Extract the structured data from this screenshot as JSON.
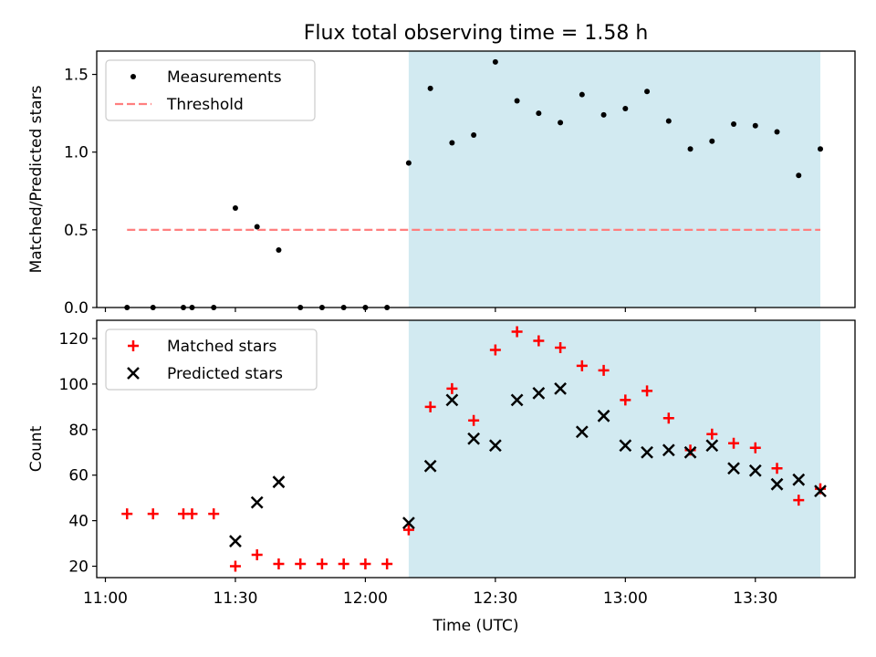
{
  "title": "Flux total observing time = 1.58 h",
  "colors": {
    "shade": "#add8e6",
    "threshold": "#ff7f7f",
    "matched": "#ff0000",
    "predicted": "#000000",
    "measurement": "#000000"
  },
  "chart_data": [
    {
      "type": "scatter",
      "ylabel": "Matched/Predicted stars",
      "xlim": [
        "10:58",
        "13:53"
      ],
      "ylim": [
        0,
        1.65
      ],
      "yticks": [
        "0.0",
        "0.5",
        "1.0",
        "1.5"
      ],
      "shaded_region": [
        "12:10",
        "13:45"
      ],
      "legend": {
        "position": "upper-left",
        "entries": [
          "Measurements",
          "Threshold"
        ]
      },
      "threshold": {
        "name": "Threshold",
        "y": 0.5,
        "x": [
          "11:05",
          "13:45"
        ]
      },
      "series": [
        {
          "name": "Measurements",
          "marker": "dot",
          "points": [
            [
              "11:05",
              0.0
            ],
            [
              "11:11",
              0.0
            ],
            [
              "11:18",
              0.0
            ],
            [
              "11:20",
              0.0
            ],
            [
              "11:25",
              0.0
            ],
            [
              "11:30",
              0.64
            ],
            [
              "11:35",
              0.52
            ],
            [
              "11:40",
              0.37
            ],
            [
              "11:45",
              0.0
            ],
            [
              "11:50",
              0.0
            ],
            [
              "11:55",
              0.0
            ],
            [
              "12:00",
              0.0
            ],
            [
              "12:05",
              0.0
            ],
            [
              "12:10",
              0.93
            ],
            [
              "12:15",
              1.41
            ],
            [
              "12:20",
              1.06
            ],
            [
              "12:25",
              1.11
            ],
            [
              "12:30",
              1.58
            ],
            [
              "12:35",
              1.33
            ],
            [
              "12:40",
              1.25
            ],
            [
              "12:45",
              1.19
            ],
            [
              "12:50",
              1.37
            ],
            [
              "12:55",
              1.24
            ],
            [
              "13:00",
              1.28
            ],
            [
              "13:05",
              1.39
            ],
            [
              "13:10",
              1.2
            ],
            [
              "13:15",
              1.02
            ],
            [
              "13:20",
              1.07
            ],
            [
              "13:25",
              1.18
            ],
            [
              "13:30",
              1.17
            ],
            [
              "13:35",
              1.13
            ],
            [
              "13:40",
              0.85
            ],
            [
              "13:45",
              1.02
            ]
          ]
        }
      ]
    },
    {
      "type": "scatter",
      "xlabel": "Time (UTC)",
      "ylabel": "Count",
      "xlim": [
        "10:58",
        "13:53"
      ],
      "ylim": [
        15,
        128
      ],
      "yticks": [
        "20",
        "40",
        "60",
        "80",
        "100",
        "120"
      ],
      "xticks": [
        "11:00",
        "11:30",
        "12:00",
        "12:30",
        "13:00",
        "13:30"
      ],
      "shaded_region": [
        "12:10",
        "13:45"
      ],
      "legend": {
        "position": "upper-left",
        "entries": [
          "Matched stars",
          "Predicted stars"
        ]
      },
      "series": [
        {
          "name": "Matched stars",
          "marker": "plus",
          "points": [
            [
              "11:05",
              43
            ],
            [
              "11:11",
              43
            ],
            [
              "11:18",
              43
            ],
            [
              "11:20",
              43
            ],
            [
              "11:25",
              43
            ],
            [
              "11:30",
              20
            ],
            [
              "11:35",
              25
            ],
            [
              "11:40",
              21
            ],
            [
              "11:45",
              21
            ],
            [
              "11:50",
              21
            ],
            [
              "11:55",
              21
            ],
            [
              "12:00",
              21
            ],
            [
              "12:05",
              21
            ],
            [
              "12:10",
              36
            ],
            [
              "12:15",
              90
            ],
            [
              "12:20",
              98
            ],
            [
              "12:25",
              84
            ],
            [
              "12:30",
              115
            ],
            [
              "12:35",
              123
            ],
            [
              "12:40",
              119
            ],
            [
              "12:45",
              116
            ],
            [
              "12:50",
              108
            ],
            [
              "12:55",
              106
            ],
            [
              "13:00",
              93
            ],
            [
              "13:05",
              97
            ],
            [
              "13:10",
              85
            ],
            [
              "13:15",
              71
            ],
            [
              "13:20",
              78
            ],
            [
              "13:25",
              74
            ],
            [
              "13:30",
              72
            ],
            [
              "13:35",
              63
            ],
            [
              "13:40",
              49
            ],
            [
              "13:45",
              54
            ]
          ]
        },
        {
          "name": "Predicted stars",
          "marker": "x",
          "points": [
            [
              "11:30",
              31
            ],
            [
              "11:35",
              48
            ],
            [
              "11:40",
              57
            ],
            [
              "12:10",
              39
            ],
            [
              "12:15",
              64
            ],
            [
              "12:20",
              93
            ],
            [
              "12:25",
              76
            ],
            [
              "12:30",
              73
            ],
            [
              "12:35",
              93
            ],
            [
              "12:40",
              96
            ],
            [
              "12:45",
              98
            ],
            [
              "12:50",
              79
            ],
            [
              "12:55",
              86
            ],
            [
              "13:00",
              73
            ],
            [
              "13:05",
              70
            ],
            [
              "13:10",
              71
            ],
            [
              "13:15",
              70
            ],
            [
              "13:20",
              73
            ],
            [
              "13:25",
              63
            ],
            [
              "13:30",
              62
            ],
            [
              "13:35",
              56
            ],
            [
              "13:40",
              58
            ],
            [
              "13:45",
              53
            ]
          ]
        }
      ]
    }
  ]
}
